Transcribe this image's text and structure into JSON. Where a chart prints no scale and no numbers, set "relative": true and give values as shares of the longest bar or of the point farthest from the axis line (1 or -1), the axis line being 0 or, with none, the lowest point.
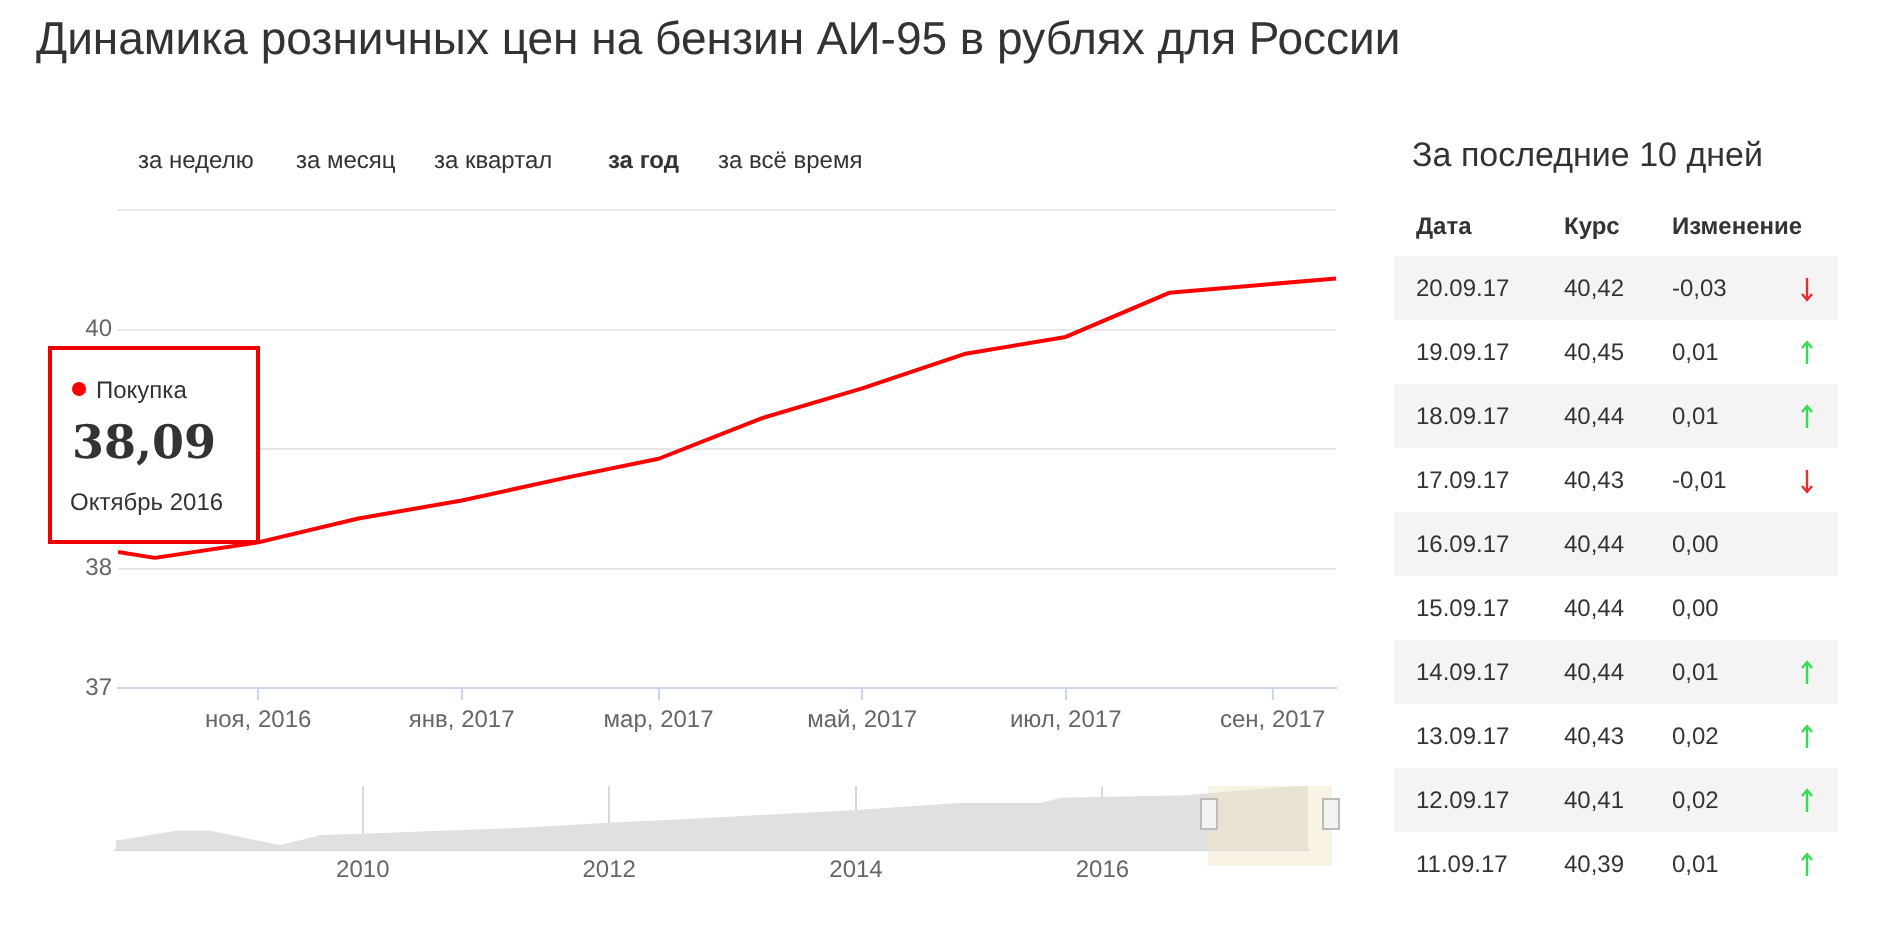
{
  "chart_data": [
    {
      "type": "line",
      "title": "Динамика розничных цен на бензин АИ-95 в рублях для России",
      "x": [
        "2016-09-20",
        "2016-10-01",
        "2016-11-01",
        "2016-12-01",
        "2017-01-01",
        "2017-02-01",
        "2017-03-01",
        "2017-04-01",
        "2017-05-01",
        "2017-06-01",
        "2017-07-01",
        "2017-08-01",
        "2017-09-20"
      ],
      "series": [
        {
          "name": "Покупка",
          "color": "#ff0000",
          "values": [
            38.14,
            38.09,
            38.22,
            38.42,
            38.57,
            38.76,
            38.92,
            39.26,
            39.51,
            39.8,
            39.94,
            40.31,
            40.43
          ]
        }
      ],
      "xlim": [
        "2016-09-20",
        "2017-09-20"
      ],
      "xticks": [
        {
          "value": "2016-11-01",
          "label": "ноя, 2016"
        },
        {
          "value": "2017-01-01",
          "label": "янв, 2017"
        },
        {
          "value": "2017-03-01",
          "label": "мар, 2017"
        },
        {
          "value": "2017-05-01",
          "label": "май, 2017"
        },
        {
          "value": "2017-07-01",
          "label": "июл, 2017"
        },
        {
          "value": "2017-09-01",
          "label": "сен, 2017"
        }
      ],
      "ylim": [
        37,
        41
      ],
      "yticks": [
        37,
        38,
        {
          "value": 39,
          "label": null
        },
        40,
        {
          "value": 41,
          "label": null
        }
      ],
      "grid": "y",
      "legend": "left",
      "marker": "none",
      "line_style": "solid",
      "annotations": [
        "за неделю",
        "за месяц",
        "за квартал",
        "за год",
        "за всё время",
        "38,09",
        "Октябрь 2016"
      ]
    },
    {
      "type": "area",
      "relative": true,
      "x": [
        "2008-01",
        "2008-07",
        "2008-10",
        "2009-01",
        "2009-05",
        "2009-09",
        "2010-01",
        "2010-08",
        "2011-04",
        "2012-01",
        "2012-10",
        "2013-07",
        "2014-01",
        "2014-11",
        "2015-07",
        "2015-09",
        "2016-09",
        "2017-09"
      ],
      "values": [
        0.13,
        0.29,
        0.29,
        0.19,
        0.06,
        0.22,
        0.24,
        0.28,
        0.33,
        0.41,
        0.48,
        0.56,
        0.61,
        0.72,
        0.72,
        0.8,
        0.84,
        1
      ],
      "color": "#e0e0e0",
      "xlim": [
        "2008-01",
        "2017-09"
      ],
      "xticks": [
        {
          "value": "2010",
          "label": "2010"
        },
        {
          "value": "2012",
          "label": "2012"
        },
        {
          "value": "2014",
          "label": "2014"
        },
        {
          "value": "2016",
          "label": "2016"
        }
      ],
      "grid": "x"
    },
    {
      "type": "other",
      "title": "За последние 10 дней",
      "annotations": [
        "Дата",
        "Курс",
        "Изменение",
        "20.09.17",
        "40,42",
        "-0,03",
        "19.09.17",
        "40,45",
        "0,01",
        "18.09.17",
        "40,44",
        "0,01",
        "17.09.17",
        "40,43",
        "-0,01",
        "16.09.17",
        "40,44",
        "0,00",
        "15.09.17",
        "40,44",
        "0,00",
        "14.09.17",
        "40,44",
        "0,01",
        "13.09.17",
        "40,43",
        "0,02",
        "12.09.17",
        "40,41",
        "0,02",
        "11.09.17",
        "40,39",
        "0,01"
      ]
    }
  ]
}
